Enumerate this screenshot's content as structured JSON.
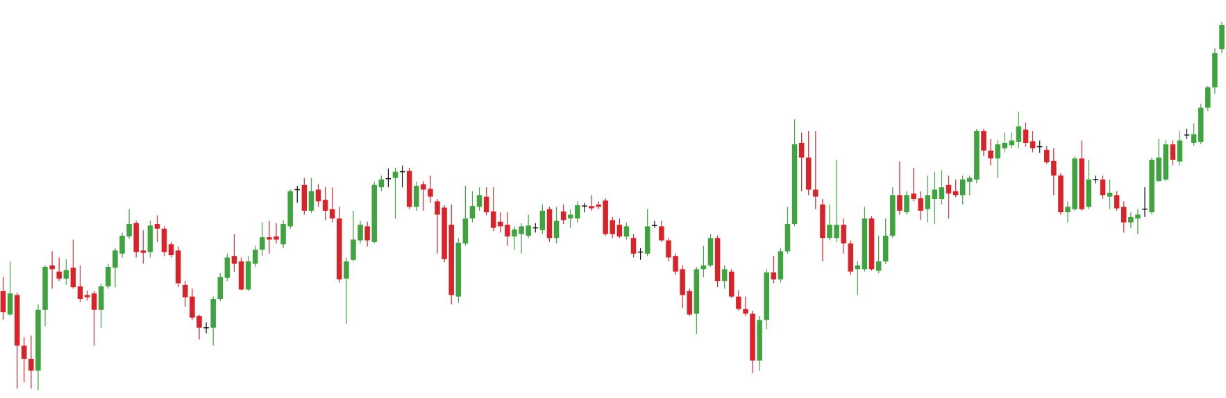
{
  "chart_data": {
    "type": "candlestick",
    "ylim": [
      10,
      520
    ],
    "up_color": "#3fa33f",
    "down_color": "#d9232b",
    "flat_color": "#111111",
    "open": [
      147,
      117,
      142,
      77,
      60,
      45,
      123,
      180,
      172,
      163,
      177,
      153,
      142,
      144,
      123,
      153,
      177,
      195,
      217,
      234,
      199,
      197,
      233,
      227,
      207,
      199,
      155,
      140,
      115,
      100,
      100,
      137,
      164,
      192,
      185,
      149,
      182,
      200,
      216,
      217,
      207,
      230,
      277,
      283,
      250,
      277,
      264,
      252,
      240,
      163,
      187,
      212,
      230,
      210,
      280,
      291,
      292,
      300,
      301,
      255,
      284,
      278,
      262,
      254,
      232,
      140,
      208,
      240,
      255,
      268,
      249,
      236,
      232,
      217,
      220,
      218,
      228,
      225,
      252,
      215,
      249,
      240,
      240,
      256,
      256,
      258,
      263,
      238,
      232,
      217,
      215,
      197,
      195,
      231,
      230,
      212,
      192,
      175,
      147,
      118,
      175,
      180,
      215,
      160,
      172,
      140,
      124,
      118,
      58,
      110,
      171,
      162,
      198,
      233,
      337,
      318,
      277,
      258,
      215,
      215,
      232,
      208,
      175,
      175,
      240,
      173,
      185,
      218,
      270,
      248,
      272,
      266,
      252,
      265,
      265,
      283,
      275,
      270,
      287,
      290,
      352,
      327,
      317,
      330,
      334,
      338,
      354,
      339,
      332,
      328,
      314,
      295,
      248,
      252,
      317,
      255,
      290,
      290,
      268,
      270,
      255,
      235,
      240,
      252,
      248,
      288,
      290,
      335,
      313,
      347,
      337,
      338,
      382,
      408,
      457
    ],
    "high": [
      165,
      185,
      145,
      88,
      90,
      130,
      180,
      198,
      190,
      188,
      213,
      180,
      148,
      147,
      157,
      182,
      202,
      222,
      252,
      237,
      225,
      237,
      244,
      230,
      210,
      204,
      160,
      150,
      117,
      107,
      140,
      170,
      195,
      220,
      190,
      192,
      205,
      235,
      237,
      234,
      238,
      277,
      282,
      292,
      292,
      284,
      280,
      280,
      255,
      190,
      250,
      237,
      236,
      287,
      295,
      304,
      305,
      308,
      305,
      287,
      288,
      295,
      265,
      257,
      258,
      215,
      282,
      275,
      280,
      280,
      280,
      248,
      248,
      230,
      234,
      245,
      234,
      258,
      255,
      255,
      258,
      252,
      262,
      260,
      270,
      262,
      266,
      242,
      240,
      235,
      220,
      202,
      252,
      237,
      237,
      215,
      195,
      180,
      150,
      178,
      205,
      220,
      218,
      180,
      175,
      148,
      140,
      122,
      115,
      175,
      192,
      202,
      255,
      367,
      350,
      352,
      352,
      265,
      258,
      315,
      240,
      212,
      185,
      255,
      243,
      218,
      240,
      280,
      313,
      275,
      305,
      275,
      295,
      300,
      302,
      295,
      290,
      295,
      295,
      355,
      355,
      342,
      340,
      350,
      350,
      377,
      363,
      352,
      340,
      333,
      330,
      298,
      262,
      320,
      340,
      315,
      295,
      295,
      290,
      275,
      262,
      248,
      252,
      280,
      318,
      342,
      340,
      340,
      352,
      355,
      362,
      387,
      410,
      458,
      492
    ],
    "low": [
      110,
      115,
      22,
      30,
      22,
      20,
      102,
      150,
      160,
      155,
      150,
      133,
      135,
      77,
      100,
      150,
      152,
      190,
      214,
      190,
      182,
      190,
      210,
      192,
      190,
      152,
      127,
      110,
      85,
      93,
      77,
      134,
      160,
      172,
      148,
      147,
      178,
      192,
      195,
      208,
      202,
      227,
      260,
      245,
      247,
      255,
      238,
      235,
      158,
      105,
      185,
      208,
      204,
      208,
      275,
      280,
      240,
      280,
      252,
      250,
      250,
      260,
      195,
      184,
      130,
      132,
      205,
      235,
      250,
      244,
      224,
      222,
      205,
      200,
      195,
      215,
      222,
      220,
      210,
      208,
      233,
      228,
      235,
      248,
      250,
      252,
      218,
      215,
      215,
      213,
      190,
      187,
      192,
      228,
      210,
      185,
      168,
      125,
      115,
      92,
      165,
      178,
      152,
      150,
      138,
      122,
      115,
      42,
      45,
      98,
      157,
      158,
      195,
      230,
      275,
      270,
      252,
      185,
      212,
      210,
      195,
      168,
      142,
      172,
      173,
      170,
      182,
      215,
      245,
      245,
      262,
      238,
      235,
      233,
      258,
      240,
      267,
      258,
      270,
      285,
      320,
      308,
      292,
      325,
      330,
      330,
      332,
      325,
      324,
      310,
      270,
      245,
      235,
      250,
      250,
      252,
      285,
      265,
      252,
      250,
      222,
      228,
      220,
      242,
      245,
      287,
      288,
      308,
      308,
      342,
      333,
      335,
      378,
      400,
      452
    ],
    "close": [
      120,
      144,
      77,
      60,
      45,
      123,
      178,
      175,
      163,
      174,
      152,
      137,
      139,
      123,
      153,
      178,
      199,
      218,
      233,
      197,
      196,
      231,
      227,
      197,
      193,
      157,
      139,
      113,
      100,
      100,
      137,
      165,
      190,
      182,
      149,
      185,
      200,
      216,
      213,
      213,
      233,
      275,
      277,
      250,
      275,
      262,
      250,
      240,
      162,
      185,
      213,
      232,
      212,
      283,
      290,
      291,
      300,
      300,
      255,
      282,
      277,
      268,
      245,
      188,
      142,
      209,
      240,
      256,
      270,
      248,
      228,
      230,
      217,
      226,
      230,
      231,
      228,
      250,
      215,
      237,
      238,
      245,
      257,
      256,
      253,
      255,
      220,
      220,
      217,
      230,
      195,
      197,
      230,
      231,
      212,
      190,
      172,
      142,
      117,
      175,
      180,
      215,
      160,
      175,
      140,
      124,
      118,
      58,
      110,
      171,
      162,
      198,
      233,
      335,
      318,
      277,
      268,
      215,
      232,
      232,
      208,
      172,
      180,
      240,
      175,
      185,
      218,
      270,
      250,
      270,
      265,
      250,
      270,
      277,
      280,
      272,
      270,
      290,
      292,
      352,
      327,
      317,
      335,
      337,
      340,
      358,
      337,
      330,
      332,
      312,
      295,
      248,
      255,
      317,
      252,
      290,
      290,
      270,
      273,
      253,
      235,
      242,
      245,
      252,
      315,
      318,
      335,
      315,
      340,
      347,
      348,
      382,
      408,
      452,
      488
    ]
  }
}
